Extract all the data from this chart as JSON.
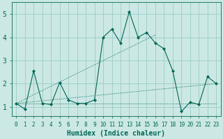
{
  "xlabel": "Humidex (Indice chaleur)",
  "bg_color": "#cce8e4",
  "grid_color": "#99ccc8",
  "line_color": "#006655",
  "xlim": [
    -0.5,
    23.5
  ],
  "ylim": [
    0.6,
    5.5
  ],
  "yticks": [
    1,
    2,
    3,
    4,
    5
  ],
  "xticks": [
    0,
    1,
    2,
    3,
    4,
    5,
    6,
    7,
    8,
    9,
    10,
    11,
    12,
    13,
    14,
    15,
    16,
    17,
    18,
    19,
    20,
    21,
    22,
    23
  ],
  "main": [
    1.15,
    0.9,
    2.55,
    1.15,
    1.1,
    2.05,
    1.3,
    1.15,
    1.15,
    1.3,
    4.0,
    4.35,
    3.75,
    5.1,
    4.0,
    4.2,
    3.75,
    3.5,
    2.55,
    0.8,
    1.2,
    1.1,
    2.3,
    2.0
  ],
  "line1_x": [
    0,
    23
  ],
  "line1_y": [
    1.15,
    1.15
  ],
  "line2_x": [
    0,
    16
  ],
  "line2_y": [
    1.15,
    4.1
  ],
  "line3_x": [
    0,
    23
  ],
  "line3_y": [
    1.15,
    2.0
  ],
  "xlabel_fontsize": 7,
  "tick_fontsize": 6,
  "ytick_fontsize": 7
}
